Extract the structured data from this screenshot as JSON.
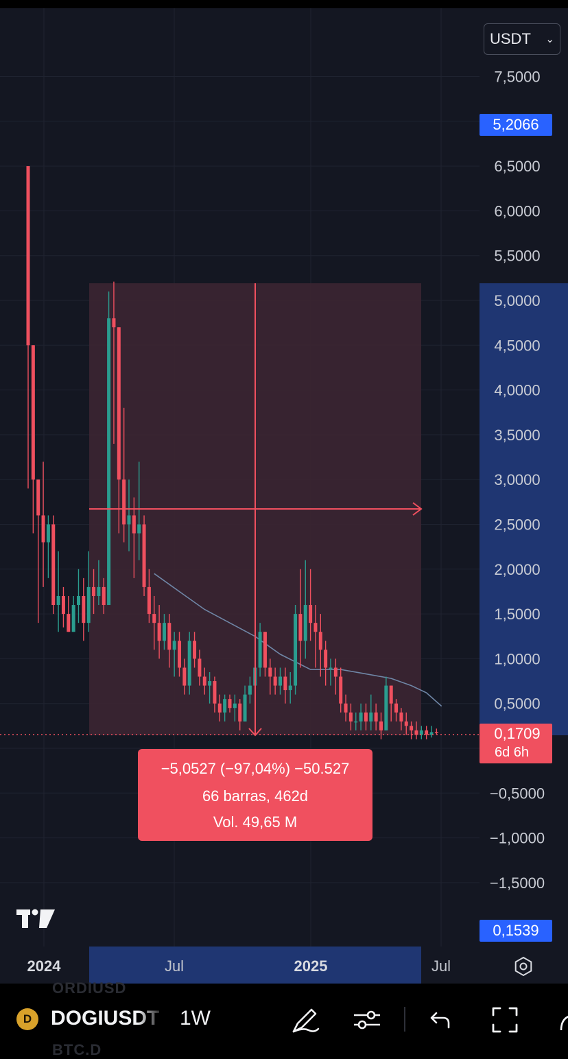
{
  "header": {
    "currency_selector": {
      "value": "USDT",
      "chevron_icon": "chevron-down-icon"
    }
  },
  "price_axis": {
    "labels": [
      "7,5000",
      "6,5000",
      "6,0000",
      "5,5000",
      "5,0000",
      "4,5000",
      "4,0000",
      "3,5000",
      "3,0000",
      "2,5000",
      "2,0000",
      "1,5000",
      "1,0000",
      "0,5000",
      "−0,5000",
      "−1,0000",
      "−1,5000"
    ],
    "badge_top": "5,2066",
    "badge_current": "0,1709",
    "badge_countdown": "6d 6h",
    "badge_bottom": "0,1539"
  },
  "time_axis": {
    "labels": [
      "2024",
      "Jul",
      "2025",
      "Jul"
    ],
    "bold": [
      true,
      false,
      true,
      false
    ]
  },
  "measure_tooltip": {
    "line1": "−5,0527 (−97,04%) −50.527",
    "line2": "66 barras, 462d",
    "line3": "Vol. 49,65 M"
  },
  "colors": {
    "up": "#2a9d8f",
    "down": "#f0505f",
    "background": "#141722",
    "accent_blue": "#2962ff",
    "range_fill": "#3b2532"
  },
  "chart_data": {
    "type": "candlestick",
    "timeframe": "1W",
    "symbol": "DOGIUSDT",
    "y_range": [
      -1.6,
      8.0
    ],
    "current_price": 0.1709,
    "measure_range": {
      "high": 5.2066,
      "low": 0.1539,
      "change": -5.0527,
      "change_pct": -97.04,
      "bars": 66,
      "days": 462,
      "volume": "49,65 M"
    },
    "candles": [
      [
        6.5,
        4.5,
        2.9,
        6.48
      ],
      [
        4.5,
        3.0,
        2.4,
        4.5
      ],
      [
        3.0,
        2.6,
        1.4,
        3.0
      ],
      [
        2.6,
        2.3,
        1.8,
        3.2
      ],
      [
        2.3,
        2.5,
        1.9,
        2.6
      ],
      [
        2.5,
        1.6,
        1.5,
        2.6
      ],
      [
        1.6,
        1.7,
        1.3,
        2.2
      ],
      [
        1.7,
        1.5,
        1.35,
        1.8
      ],
      [
        1.5,
        1.3,
        1.3,
        1.7
      ],
      [
        1.3,
        1.6,
        1.3,
        1.7
      ],
      [
        1.6,
        1.7,
        1.4,
        2.0
      ],
      [
        1.7,
        1.4,
        1.2,
        1.9
      ],
      [
        1.4,
        1.8,
        1.3,
        2.2
      ],
      [
        1.8,
        1.7,
        1.5,
        2.0
      ],
      [
        1.7,
        1.8,
        1.6,
        2.1
      ],
      [
        1.8,
        1.6,
        1.5,
        1.9
      ],
      [
        1.6,
        4.8,
        1.6,
        5.1
      ],
      [
        4.8,
        4.7,
        3.4,
        5.21
      ],
      [
        4.7,
        3.0,
        2.4,
        4.7
      ],
      [
        3.0,
        2.5,
        2.3,
        3.8
      ],
      [
        2.5,
        2.6,
        2.2,
        3.0
      ],
      [
        2.6,
        2.4,
        1.9,
        2.8
      ],
      [
        2.4,
        2.5,
        2.1,
        3.2
      ],
      [
        2.5,
        1.8,
        1.7,
        2.6
      ],
      [
        1.8,
        1.5,
        1.4,
        2.0
      ],
      [
        1.5,
        1.4,
        1.1,
        1.7
      ],
      [
        1.4,
        1.2,
        1.0,
        1.6
      ],
      [
        1.2,
        1.4,
        1.1,
        1.5
      ],
      [
        1.4,
        1.1,
        0.9,
        1.5
      ],
      [
        1.1,
        1.2,
        0.8,
        1.3
      ],
      [
        1.2,
        0.9,
        0.8,
        1.3
      ],
      [
        0.9,
        0.7,
        0.6,
        1.0
      ],
      [
        0.7,
        1.2,
        0.6,
        1.3
      ],
      [
        1.2,
        1.0,
        0.9,
        1.3
      ],
      [
        1.0,
        0.8,
        0.7,
        1.1
      ],
      [
        0.8,
        0.7,
        0.6,
        0.9
      ],
      [
        0.7,
        0.75,
        0.5,
        0.85
      ],
      [
        0.75,
        0.5,
        0.4,
        0.8
      ],
      [
        0.5,
        0.4,
        0.3,
        0.6
      ],
      [
        0.4,
        0.55,
        0.3,
        0.6
      ],
      [
        0.55,
        0.45,
        0.4,
        0.6
      ],
      [
        0.45,
        0.5,
        0.3,
        0.6
      ],
      [
        0.5,
        0.3,
        0.2,
        0.55
      ],
      [
        0.3,
        0.6,
        0.3,
        0.7
      ],
      [
        0.6,
        0.7,
        0.5,
        0.8
      ],
      [
        0.7,
        0.9,
        0.6,
        1.0
      ],
      [
        0.9,
        1.3,
        0.8,
        1.4
      ],
      [
        1.3,
        0.9,
        0.8,
        1.3
      ],
      [
        0.9,
        0.8,
        0.6,
        1.0
      ],
      [
        0.8,
        0.7,
        0.6,
        0.9
      ],
      [
        0.7,
        0.8,
        0.6,
        0.9
      ],
      [
        0.8,
        0.65,
        0.5,
        0.9
      ],
      [
        0.65,
        0.7,
        0.5,
        0.85
      ],
      [
        0.7,
        1.5,
        0.6,
        1.6
      ],
      [
        1.5,
        1.2,
        0.9,
        2.0
      ],
      [
        1.2,
        1.6,
        1.0,
        2.1
      ],
      [
        1.6,
        1.4,
        1.2,
        2.0
      ],
      [
        1.4,
        1.3,
        0.9,
        1.6
      ],
      [
        1.3,
        1.1,
        0.8,
        1.5
      ],
      [
        1.1,
        0.9,
        0.7,
        1.2
      ],
      [
        0.9,
        0.9,
        0.7,
        1.0
      ],
      [
        0.9,
        0.8,
        0.6,
        1.0
      ],
      [
        0.8,
        0.5,
        0.4,
        0.9
      ],
      [
        0.5,
        0.4,
        0.3,
        0.6
      ],
      [
        0.4,
        0.3,
        0.2,
        0.5
      ],
      [
        0.3,
        0.3,
        0.2,
        0.4
      ],
      [
        0.3,
        0.4,
        0.2,
        0.5
      ],
      [
        0.4,
        0.3,
        0.2,
        0.5
      ],
      [
        0.3,
        0.4,
        0.2,
        0.6
      ],
      [
        0.4,
        0.3,
        0.2,
        0.5
      ],
      [
        0.3,
        0.2,
        0.1,
        0.4
      ],
      [
        0.2,
        0.7,
        0.2,
        0.8
      ],
      [
        0.7,
        0.5,
        0.3,
        0.7
      ],
      [
        0.5,
        0.4,
        0.3,
        0.55
      ],
      [
        0.4,
        0.3,
        0.2,
        0.45
      ],
      [
        0.3,
        0.25,
        0.15,
        0.4
      ],
      [
        0.25,
        0.2,
        0.1,
        0.3
      ],
      [
        0.2,
        0.15,
        0.1,
        0.3
      ],
      [
        0.15,
        0.2,
        0.1,
        0.25
      ],
      [
        0.2,
        0.15,
        0.1,
        0.25
      ],
      [
        0.15,
        0.18,
        0.12,
        0.25
      ],
      [
        0.18,
        0.17,
        0.15,
        0.22
      ]
    ],
    "moving_average": [
      [
        1.95,
        25
      ],
      [
        1.75,
        30
      ],
      [
        1.55,
        35
      ],
      [
        1.4,
        40
      ],
      [
        1.25,
        45
      ],
      [
        1.05,
        50
      ],
      [
        0.88,
        56
      ],
      [
        0.88,
        62
      ],
      [
        0.83,
        67
      ],
      [
        0.78,
        72
      ],
      [
        0.7,
        76
      ],
      [
        0.62,
        79
      ],
      [
        0.47,
        82
      ]
    ]
  },
  "bottom_bar": {
    "ghost_above": "ORDIUSD",
    "ghost_below": "BTC.D",
    "symbol_icon_letter": "D",
    "symbol": "DOGIUSDT",
    "interval": "1W",
    "tools": [
      "pen-icon",
      "sliders-icon",
      "undo-icon",
      "fullscreen-icon"
    ]
  }
}
